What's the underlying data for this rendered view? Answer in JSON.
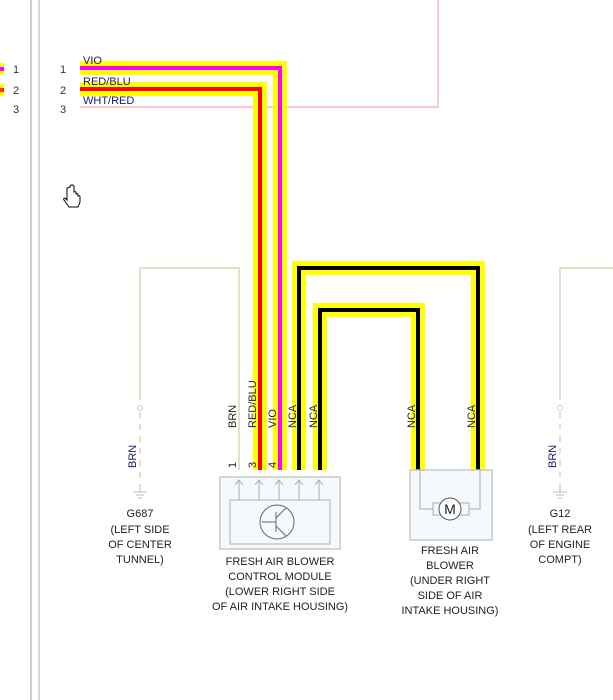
{
  "connector_pins": [
    "1",
    "2",
    "3"
  ],
  "left_pins": [
    "1",
    "2",
    "3"
  ],
  "wires": [
    {
      "pin": "1",
      "color_label": "VIO",
      "core": "#ff00ff",
      "highlight": "#ffff00"
    },
    {
      "pin": "2",
      "color_label": "RED/BLU",
      "core": "#ff0000",
      "highlight": "#ffff00"
    },
    {
      "pin": "3",
      "color_label": "WHT/RED",
      "core": "#ffc8c8"
    }
  ],
  "module_pins": {
    "p1": "1",
    "p3": "3",
    "p4": "4"
  },
  "vertical_labels": {
    "brn": "BRN",
    "redblu": "RED/BLU",
    "vio": "VIO",
    "nca": "NCA"
  },
  "grounds": [
    {
      "id": "G687",
      "wire": "BRN",
      "location": [
        "(LEFT SIDE",
        "OF CENTER",
        "TUNNEL)"
      ]
    },
    {
      "id": "G12",
      "wire": "BRN",
      "location": [
        "(LEFT REAR",
        "OF ENGINE",
        "COMPT)"
      ]
    }
  ],
  "components": [
    {
      "lines": [
        "FRESH AIR BLOWER",
        "CONTROL MODULE",
        "(LOWER RIGHT SIDE",
        "OF AIR INTAKE HOUSING)"
      ]
    },
    {
      "symbol": "M",
      "lines": [
        "FRESH AIR",
        "BLOWER",
        "(UNDER RIGHT",
        "SIDE OF AIR",
        "INTAKE HOUSING)"
      ]
    }
  ],
  "colors": {
    "highlight": "#ffff00",
    "vio": "#ff00ff",
    "red": "#ff0000",
    "nca": "#000000",
    "brn": "#e8dccb",
    "wht_red": "#ffc8c8"
  }
}
